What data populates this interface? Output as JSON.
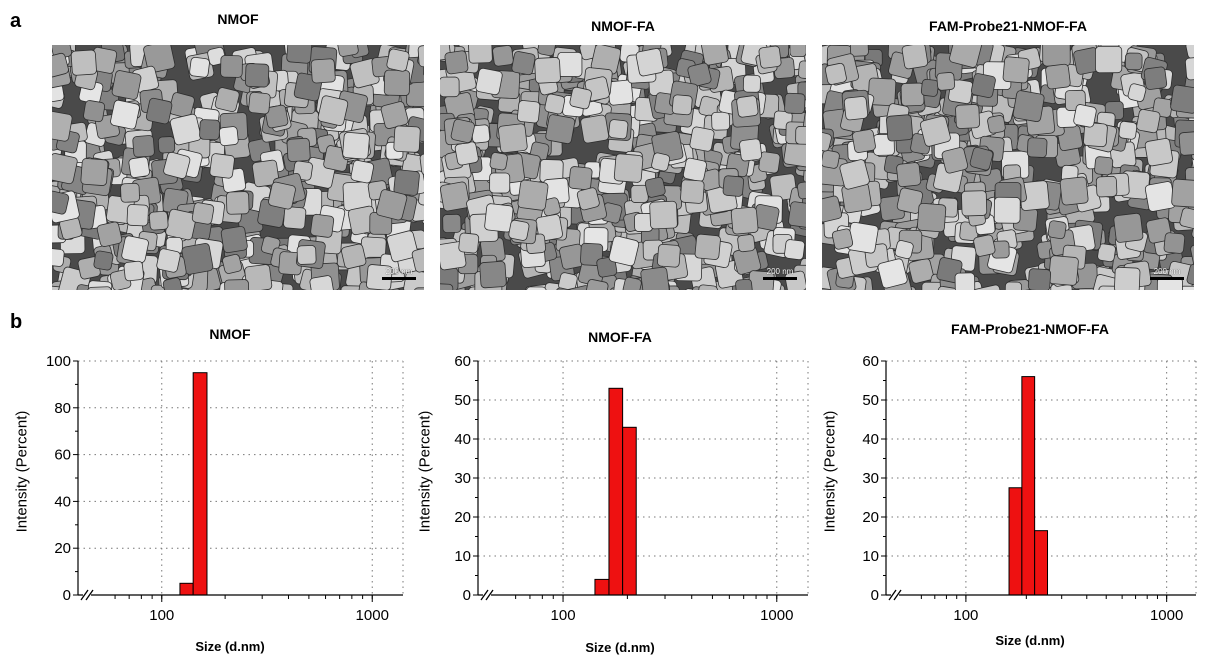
{
  "panel_a": {
    "letter": "a",
    "images": [
      {
        "title": "NMOF",
        "scale_label": "200 nm"
      },
      {
        "title": "NMOF-FA",
        "scale_label": "200 nm"
      },
      {
        "title": "FAM-Probe21-NMOF-FA",
        "scale_label": "200 nm"
      }
    ]
  },
  "panel_b": {
    "letter": "b"
  },
  "chart_data": [
    {
      "type": "bar",
      "title": "NMOF",
      "xlabel": "Size (d.nm)",
      "ylabel": "Intensity (Percent)",
      "x_scale": "log",
      "xlim": [
        40,
        1400
      ],
      "ylim": [
        0,
        100
      ],
      "yticks": [
        0,
        20,
        40,
        60,
        80,
        100
      ],
      "xticks": [
        100,
        1000
      ],
      "grid": true,
      "bar_color": "#ee1111",
      "bars": [
        {
          "x0": 122,
          "x1": 141,
          "value": 5
        },
        {
          "x0": 141,
          "x1": 164,
          "value": 95
        }
      ]
    },
    {
      "type": "bar",
      "title": "NMOF-FA",
      "xlabel": "Size (d.nm)",
      "ylabel": "Intensity (Percent)",
      "x_scale": "log",
      "xlim": [
        40,
        1400
      ],
      "ylim": [
        0,
        60
      ],
      "yticks": [
        0,
        10,
        20,
        30,
        40,
        50,
        60
      ],
      "xticks": [
        100,
        1000
      ],
      "grid": true,
      "bar_color": "#ee1111",
      "bars": [
        {
          "x0": 141,
          "x1": 164,
          "value": 4
        },
        {
          "x0": 164,
          "x1": 190,
          "value": 53
        },
        {
          "x0": 190,
          "x1": 220,
          "value": 43
        }
      ]
    },
    {
      "type": "bar",
      "title": "FAM-Probe21-NMOF-FA",
      "xlabel": "Size (d.nm)",
      "ylabel": "Intensity (Percent)",
      "x_scale": "log",
      "xlim": [
        40,
        1400
      ],
      "ylim": [
        0,
        60
      ],
      "yticks": [
        0,
        10,
        20,
        30,
        40,
        50,
        60
      ],
      "xticks": [
        100,
        1000
      ],
      "grid": true,
      "bar_color": "#ee1111",
      "bars": [
        {
          "x0": 164,
          "x1": 190,
          "value": 27.5
        },
        {
          "x0": 190,
          "x1": 220,
          "value": 56
        },
        {
          "x0": 220,
          "x1": 255,
          "value": 16.5
        }
      ]
    }
  ]
}
